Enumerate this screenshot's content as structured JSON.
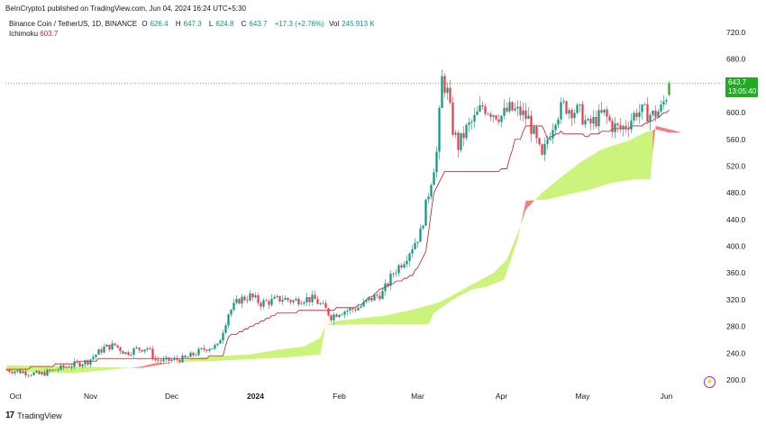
{
  "header": {
    "published": "BeInCrypto1 published on TradingView.com, Jun 04, 2024 16:24 UTC+5:30"
  },
  "legend": {
    "symbol": "Binance Coin / TetherUS, 1D, BINANCE",
    "open_label": "O",
    "open": "626.4",
    "high_label": "H",
    "high": "647.3",
    "low_label": "L",
    "low": "624.8",
    "close_label": "C",
    "close": "643.7",
    "change": "+17.3 (+2.76%)",
    "vol_label": "Vol",
    "vol": "245.913 K"
  },
  "indicator": {
    "name": "Ichimoku",
    "value": "603.7"
  },
  "price_badge": {
    "price": "643.7",
    "countdown": "13:05:40"
  },
  "footer": {
    "brand": "TradingView"
  },
  "colors": {
    "up": "#089981",
    "down": "#f23645",
    "up_bright": "#22ab22",
    "kumo_bull": "#ccf47c",
    "kumo_bear": "#f77c80",
    "baseline": "#b71c1c"
  },
  "chart_data": {
    "type": "candlestick",
    "title": "Binance Coin / TetherUS, 1D, BINANCE",
    "ylim": [
      185,
      735
    ],
    "y_ticks": [
      200,
      240,
      280,
      320,
      360,
      400,
      440,
      480,
      520,
      560,
      600,
      640,
      680,
      720
    ],
    "y_tick_labels": [
      "200.0",
      "240.0",
      "280.0",
      "320.0",
      "360.0",
      "400.0",
      "440.0",
      "480.0",
      "520.0",
      "560.0",
      "600.0",
      "",
      "680.0",
      "720.0"
    ],
    "x_labels": [
      "Oct",
      "Nov",
      "Dec",
      "2024",
      "Feb",
      "Mar",
      "Apr",
      "May",
      "Jun"
    ],
    "x_label_positions_day": [
      0,
      31,
      61,
      92,
      123,
      152,
      183,
      213,
      244
    ],
    "days": 259,
    "last_price": 643.7,
    "close_anchors": [
      [
        0,
        215
      ],
      [
        6,
        212
      ],
      [
        12,
        208
      ],
      [
        18,
        215
      ],
      [
        24,
        222
      ],
      [
        30,
        228
      ],
      [
        33,
        238
      ],
      [
        36,
        248
      ],
      [
        40,
        252
      ],
      [
        44,
        240
      ],
      [
        48,
        246
      ],
      [
        52,
        248
      ],
      [
        55,
        230
      ],
      [
        58,
        228
      ],
      [
        62,
        230
      ],
      [
        66,
        232
      ],
      [
        70,
        240
      ],
      [
        74,
        248
      ],
      [
        78,
        250
      ],
      [
        82,
        300
      ],
      [
        86,
        320
      ],
      [
        90,
        325
      ],
      [
        94,
        315
      ],
      [
        98,
        318
      ],
      [
        102,
        322
      ],
      [
        106,
        318
      ],
      [
        110,
        322
      ],
      [
        114,
        320
      ],
      [
        118,
        305
      ],
      [
        120,
        295
      ],
      [
        123,
        302
      ],
      [
        127,
        305
      ],
      [
        131,
        310
      ],
      [
        135,
        322
      ],
      [
        139,
        330
      ],
      [
        143,
        360
      ],
      [
        147,
        380
      ],
      [
        150,
        400
      ],
      [
        153,
        420
      ],
      [
        156,
        480
      ],
      [
        159,
        540
      ],
      [
        161,
        650
      ],
      [
        163,
        630
      ],
      [
        165,
        575
      ],
      [
        167,
        550
      ],
      [
        170,
        575
      ],
      [
        173,
        590
      ],
      [
        176,
        610
      ],
      [
        180,
        600
      ],
      [
        183,
        595
      ],
      [
        186,
        605
      ],
      [
        190,
        600
      ],
      [
        193,
        590
      ],
      [
        196,
        555
      ],
      [
        198,
        530
      ],
      [
        200,
        560
      ],
      [
        203,
        595
      ],
      [
        206,
        610
      ],
      [
        209,
        605
      ],
      [
        212,
        600
      ],
      [
        215,
        580
      ],
      [
        218,
        590
      ],
      [
        221,
        598
      ],
      [
        224,
        580
      ],
      [
        227,
        575
      ],
      [
        230,
        585
      ],
      [
        233,
        602
      ],
      [
        236,
        600
      ],
      [
        239,
        596
      ],
      [
        242,
        605
      ],
      [
        244,
        626
      ],
      [
        245,
        643.7
      ]
    ],
    "kumo_top_anchors": [
      [
        0,
        222
      ],
      [
        25,
        220
      ],
      [
        50,
        218
      ],
      [
        60,
        225
      ],
      [
        70,
        233
      ],
      [
        80,
        236
      ],
      [
        90,
        238
      ],
      [
        100,
        245
      ],
      [
        110,
        250
      ],
      [
        116,
        263
      ],
      [
        118,
        282
      ],
      [
        122,
        288
      ],
      [
        130,
        292
      ],
      [
        140,
        296
      ],
      [
        150,
        305
      ],
      [
        160,
        316
      ],
      [
        170,
        338
      ],
      [
        180,
        360
      ],
      [
        185,
        380
      ],
      [
        190,
        430
      ],
      [
        192,
        455
      ],
      [
        198,
        480
      ],
      [
        204,
        500
      ],
      [
        212,
        525
      ],
      [
        220,
        545
      ],
      [
        230,
        558
      ],
      [
        236,
        570
      ],
      [
        240,
        575
      ],
      [
        245,
        570
      ],
      [
        250,
        570
      ]
    ],
    "kumo_bottom_anchors": [
      [
        0,
        213
      ],
      [
        25,
        210
      ],
      [
        50,
        220
      ],
      [
        55,
        225
      ],
      [
        65,
        227
      ],
      [
        75,
        228
      ],
      [
        85,
        230
      ],
      [
        95,
        232
      ],
      [
        105,
        234
      ],
      [
        116,
        238
      ],
      [
        118,
        282
      ],
      [
        130,
        283
      ],
      [
        150,
        283
      ],
      [
        156,
        283
      ],
      [
        158,
        300
      ],
      [
        165,
        320
      ],
      [
        172,
        335
      ],
      [
        178,
        340
      ],
      [
        184,
        350
      ],
      [
        189,
        410
      ],
      [
        192,
        468
      ],
      [
        200,
        470
      ],
      [
        208,
        478
      ],
      [
        216,
        485
      ],
      [
        224,
        495
      ],
      [
        232,
        500
      ],
      [
        238,
        500
      ],
      [
        240,
        580
      ],
      [
        250,
        570
      ]
    ],
    "baseline_anchors": [
      [
        0,
        214
      ],
      [
        30,
        228
      ],
      [
        40,
        233
      ],
      [
        50,
        232
      ],
      [
        60,
        230
      ],
      [
        70,
        232
      ],
      [
        80,
        236
      ],
      [
        82,
        265
      ],
      [
        90,
        278
      ],
      [
        100,
        300
      ],
      [
        120,
        305
      ],
      [
        130,
        310
      ],
      [
        140,
        340
      ],
      [
        150,
        356
      ],
      [
        155,
        390
      ],
      [
        158,
        480
      ],
      [
        162,
        510
      ],
      [
        165,
        510
      ],
      [
        170,
        513
      ],
      [
        180,
        513
      ],
      [
        185,
        515
      ],
      [
        188,
        560
      ],
      [
        190,
        560
      ],
      [
        192,
        580
      ],
      [
        198,
        580
      ],
      [
        200,
        560
      ],
      [
        205,
        570
      ],
      [
        215,
        565
      ],
      [
        225,
        575
      ],
      [
        235,
        580
      ],
      [
        240,
        590
      ],
      [
        245,
        603.7
      ]
    ]
  }
}
